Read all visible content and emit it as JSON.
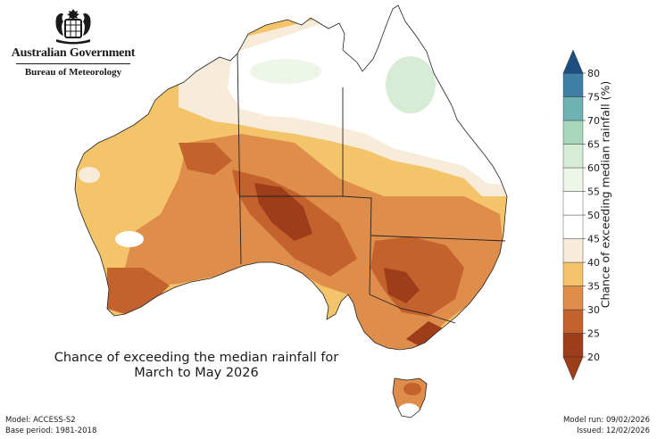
{
  "header": {
    "government": "Australian Government",
    "bureau": "Bureau of Meteorology"
  },
  "map": {
    "caption_line1": "Chance of exceeding the median rainfall for",
    "caption_line2": "March to May 2026"
  },
  "legend": {
    "title": "Chance of exceeding median rainfall (%)",
    "min": 20,
    "max": 80,
    "ticks": [
      "20",
      "25",
      "30",
      "35",
      "40",
      "45",
      "50",
      "55",
      "60",
      "65",
      "70",
      "75",
      "80"
    ],
    "colors": [
      "#9e3d1a",
      "#c4622e",
      "#de8d4a",
      "#f3c46a",
      "#f7ecd9",
      "#ffffff",
      "#ffffff",
      "#eef6ea",
      "#d7ecd4",
      "#a9d7bb",
      "#6eb2b3",
      "#3f7fa6",
      "#1d4f82"
    ]
  },
  "footer": {
    "model": "Model: ACCESS-S2",
    "base_period": "Base period: 1981-2018",
    "model_run": "Model run: 09/02/2026",
    "issued": "Issued: 12/02/2026"
  }
}
